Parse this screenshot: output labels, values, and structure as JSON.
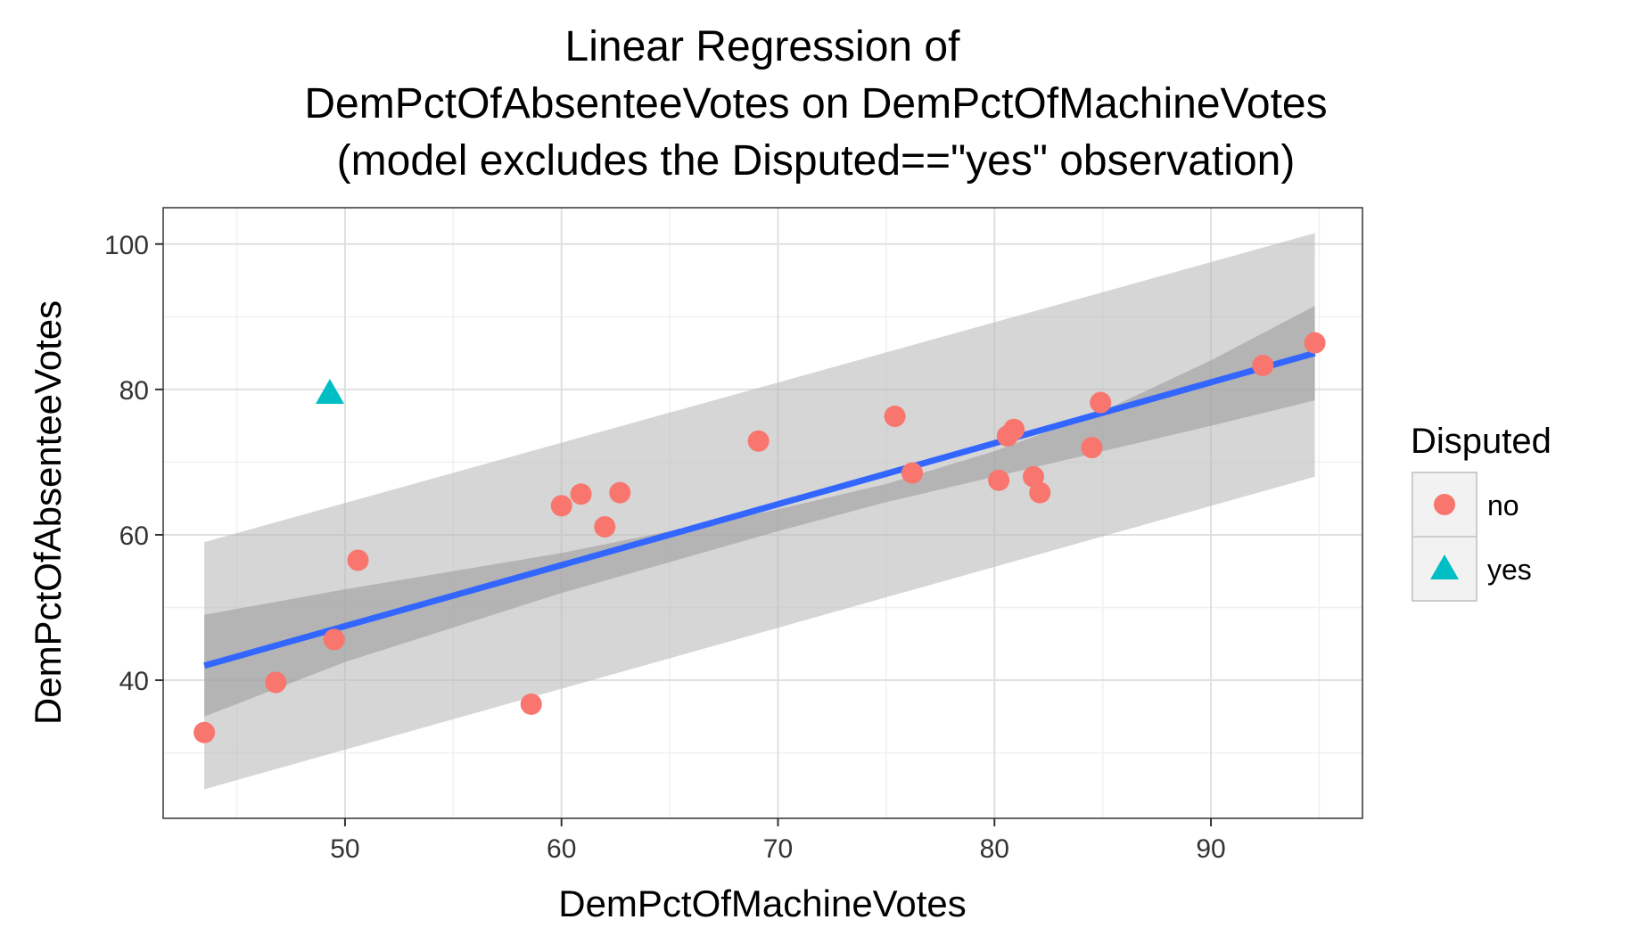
{
  "chart_data": {
    "type": "scatter",
    "title_lines": [
      "Linear Regression of",
      "DemPctOfAbsenteeVotes on DemPctOfMachineVotes",
      "(model excludes the Disputed==\"yes\" observation)"
    ],
    "xlabel": "DemPctOfMachineVotes",
    "ylabel": "DemPctOfAbsenteeVotes",
    "xlim": [
      41.6,
      97.0
    ],
    "ylim": [
      21.0,
      105.0
    ],
    "x_ticks": [
      50,
      60,
      70,
      80,
      90
    ],
    "y_ticks": [
      40,
      60,
      80,
      100
    ],
    "x_tick_labels": [
      "50",
      "60",
      "70",
      "80",
      "90"
    ],
    "y_tick_labels": [
      "40",
      "60",
      "80",
      "100"
    ],
    "grid": true,
    "legend": {
      "title": "Disputed",
      "position": "right",
      "entries": [
        {
          "label": "no",
          "color": "#F8766D",
          "shape": "circle"
        },
        {
          "label": "yes",
          "color": "#00BFC4",
          "shape": "triangle"
        }
      ]
    },
    "series": [
      {
        "name": "no",
        "color": "#F8766D",
        "shape": "circle",
        "points": [
          [
            43.5,
            32.8
          ],
          [
            46.8,
            39.7
          ],
          [
            49.5,
            45.6
          ],
          [
            50.6,
            56.5
          ],
          [
            58.6,
            36.7
          ],
          [
            60.0,
            64.0
          ],
          [
            60.9,
            65.6
          ],
          [
            62.0,
            61.1
          ],
          [
            62.7,
            65.8
          ],
          [
            69.1,
            72.9
          ],
          [
            75.4,
            76.3
          ],
          [
            76.2,
            68.5
          ],
          [
            80.2,
            67.5
          ],
          [
            80.6,
            73.6
          ],
          [
            80.9,
            74.5
          ],
          [
            81.8,
            68.0
          ],
          [
            82.1,
            65.8
          ],
          [
            84.5,
            72.0
          ],
          [
            84.9,
            78.2
          ],
          [
            92.4,
            83.3
          ],
          [
            94.8,
            86.4
          ]
        ]
      },
      {
        "name": "yes",
        "color": "#00BFC4",
        "shape": "triangle",
        "points": [
          [
            49.3,
            79.5
          ]
        ]
      }
    ],
    "regression": {
      "color": "#3366FF",
      "x_range": [
        43.5,
        94.8
      ],
      "start": [
        43.5,
        42.0
      ],
      "end": [
        94.8,
        85.0
      ],
      "confidence_band": {
        "color": "#999999",
        "x": [
          43.5,
          50,
          60,
          70,
          75,
          80,
          85,
          90,
          94.8
        ],
        "lower": [
          35.0,
          42.5,
          52.0,
          60.5,
          64.5,
          68.0,
          71.5,
          75.0,
          78.5
        ],
        "upper": [
          49.0,
          52.5,
          57.5,
          63.5,
          67.0,
          71.5,
          77.0,
          84.0,
          91.5
        ]
      },
      "prediction_band": {
        "color": "#bbbbbb",
        "x": [
          43.5,
          94.8
        ],
        "lower": [
          25.0,
          68.0
        ],
        "upper": [
          59.0,
          101.5
        ]
      }
    }
  }
}
